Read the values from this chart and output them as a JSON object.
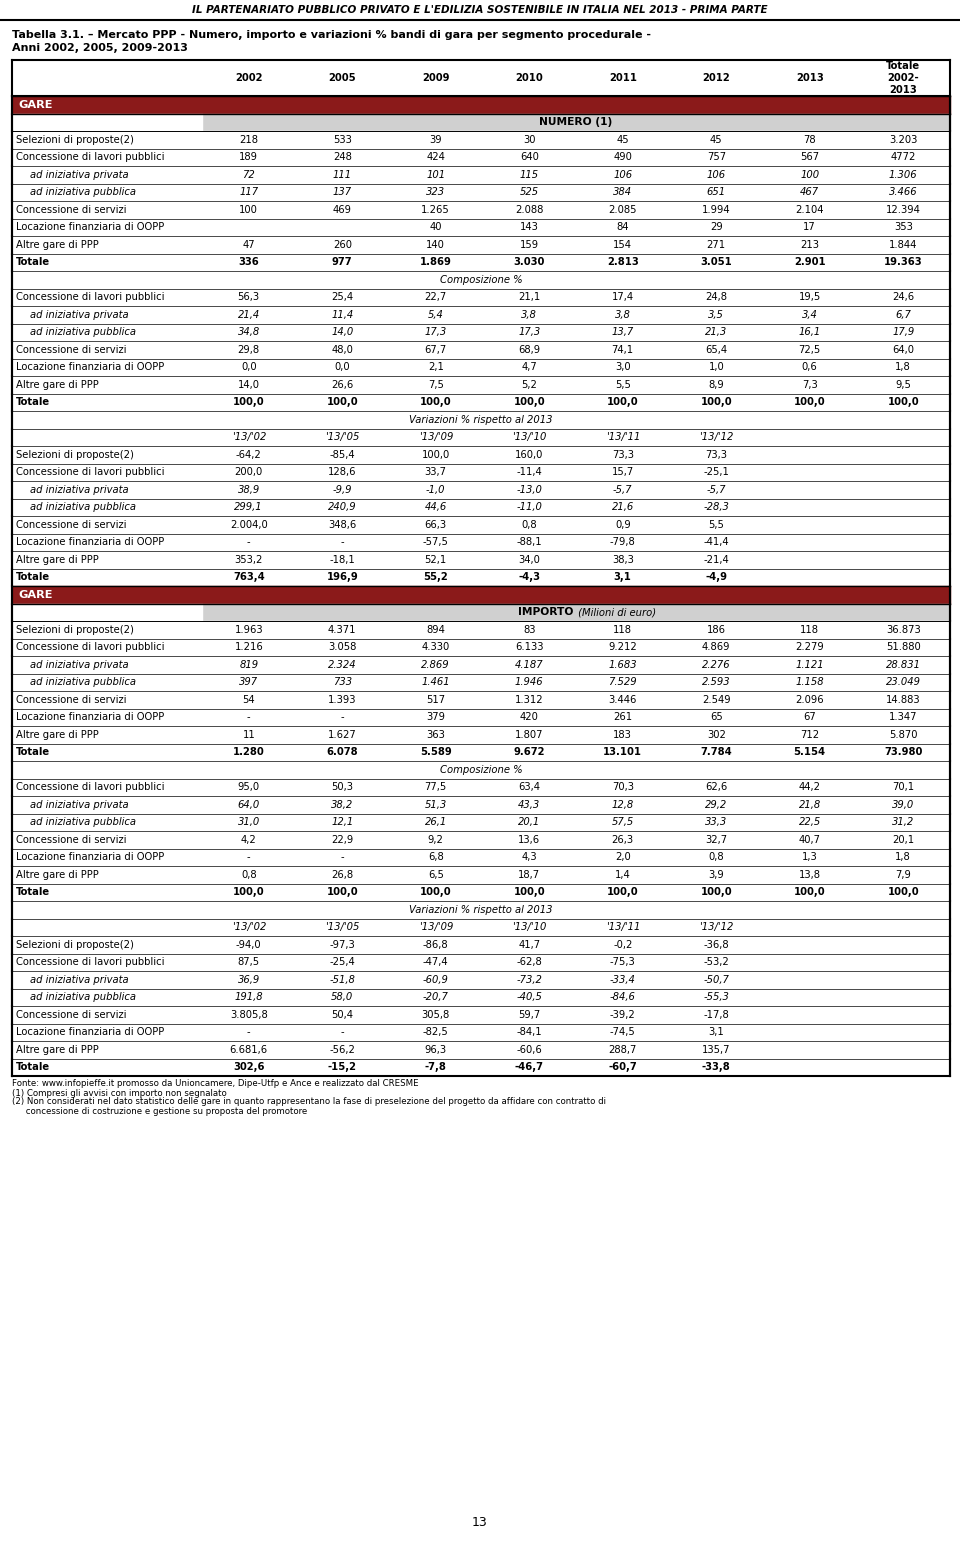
{
  "header_title": "IL PARTENARIATO PUBBLICO PRIVATO E L'EDILIZIA SOSTENIBILE IN ITALIA NEL 2013 - PRIMA PARTE",
  "table_title_line1": "Tabella 3.1. – Mercato PPP - Numero, importo e variazioni % bandi di gara per segmento procedurale -",
  "table_title_line2": "Anni 2002, 2005, 2009-2013",
  "section_gare": "GARE",
  "subsection_numero": "NUMERO (1)",
  "subsection_composizione": "Composizione %",
  "subsection_variazioni": "Variazioni % rispetto al 2013",
  "subsection_importo_bold": "IMPORTO",
  "subsection_importo_italic": " (Milioni di euro)",
  "subsection_composizione2": "Composizione %",
  "subsection_variazioni2": "Variazioni % rispetto al 2013",
  "footer_lines": [
    "Fonte: www.infopieffe.it promosso da Unioncamere, Dipe-Utfp e Ance e realizzato dal CRESME",
    "(1) Compresi gli avvisi con importo non segnalato",
    "(2) Non considerati nel dato statistico delle gare in quanto rappresentano la fase di preselezione del progetto da affidare con contratto di",
    "     concessione di costruzione e gestione su proposta del promotore"
  ],
  "page_number": "13",
  "col_headers_years": [
    "2002",
    "2005",
    "2009",
    "2010",
    "2011",
    "2012",
    "2013"
  ],
  "col_header_totale": "Totale\n2002-\n2013",
  "dark_red": "#8B1A1A",
  "light_gray": "#D0D0D0",
  "rows_numero": [
    [
      "Selezioni di proposte(2)",
      "218",
      "533",
      "39",
      "30",
      "45",
      "45",
      "78",
      "3.203",
      false,
      false
    ],
    [
      "Concessione di lavori pubblici",
      "189",
      "248",
      "424",
      "640",
      "490",
      "757",
      "567",
      "4772",
      false,
      false
    ],
    [
      "ad iniziativa privata",
      "72",
      "111",
      "101",
      "115",
      "106",
      "106",
      "100",
      "1.306",
      false,
      true
    ],
    [
      "ad iniziativa pubblica",
      "117",
      "137",
      "323",
      "525",
      "384",
      "651",
      "467",
      "3.466",
      false,
      true
    ],
    [
      "Concessione di servizi",
      "100",
      "469",
      "1.265",
      "2.088",
      "2.085",
      "1.994",
      "2.104",
      "12.394",
      false,
      false
    ],
    [
      "Locazione finanziaria di OOPP",
      "",
      "",
      "40",
      "143",
      "84",
      "29",
      "17",
      "353",
      false,
      false
    ],
    [
      "Altre gare di PPP",
      "47",
      "260",
      "140",
      "159",
      "154",
      "271",
      "213",
      "1.844",
      false,
      false
    ],
    [
      "Totale",
      "336",
      "977",
      "1.869",
      "3.030",
      "2.813",
      "3.051",
      "2.901",
      "19.363",
      true,
      false
    ]
  ],
  "rows_composizione1": [
    [
      "Concessione di lavori pubblici",
      "56,3",
      "25,4",
      "22,7",
      "21,1",
      "17,4",
      "24,8",
      "19,5",
      "24,6",
      false,
      false
    ],
    [
      "ad iniziativa privata",
      "21,4",
      "11,4",
      "5,4",
      "3,8",
      "3,8",
      "3,5",
      "3,4",
      "6,7",
      false,
      true
    ],
    [
      "ad iniziativa pubblica",
      "34,8",
      "14,0",
      "17,3",
      "17,3",
      "13,7",
      "21,3",
      "16,1",
      "17,9",
      false,
      true
    ],
    [
      "Concessione di servizi",
      "29,8",
      "48,0",
      "67,7",
      "68,9",
      "74,1",
      "65,4",
      "72,5",
      "64,0",
      false,
      false
    ],
    [
      "Locazione finanziaria di OOPP",
      "0,0",
      "0,0",
      "2,1",
      "4,7",
      "3,0",
      "1,0",
      "0,6",
      "1,8",
      false,
      false
    ],
    [
      "Altre gare di PPP",
      "14,0",
      "26,6",
      "7,5",
      "5,2",
      "5,5",
      "8,9",
      "7,3",
      "9,5",
      false,
      false
    ],
    [
      "Totale",
      "100,0",
      "100,0",
      "100,0",
      "100,0",
      "100,0",
      "100,0",
      "100,0",
      "100,0",
      true,
      false
    ]
  ],
  "var1_col_headers": [
    "'13/'02",
    "'13/'05",
    "'13/'09",
    "'13/'10",
    "'13/'11",
    "'13/'12"
  ],
  "rows_variazioni1": [
    [
      "Selezioni di proposte(2)",
      "-64,2",
      "-85,4",
      "100,0",
      "160,0",
      "73,3",
      "73,3",
      false,
      false
    ],
    [
      "Concessione di lavori pubblici",
      "200,0",
      "128,6",
      "33,7",
      "-11,4",
      "15,7",
      "-25,1",
      false,
      false
    ],
    [
      "ad iniziativa privata",
      "38,9",
      "-9,9",
      "-1,0",
      "-13,0",
      "-5,7",
      "-5,7",
      false,
      true
    ],
    [
      "ad iniziativa pubblica",
      "299,1",
      "240,9",
      "44,6",
      "-11,0",
      "21,6",
      "-28,3",
      false,
      true
    ],
    [
      "Concessione di servizi",
      "2.004,0",
      "348,6",
      "66,3",
      "0,8",
      "0,9",
      "5,5",
      false,
      false
    ],
    [
      "Locazione finanziaria di OOPP",
      "-",
      "-",
      "-57,5",
      "-88,1",
      "-79,8",
      "-41,4",
      false,
      false
    ],
    [
      "Altre gare di PPP",
      "353,2",
      "-18,1",
      "52,1",
      "34,0",
      "38,3",
      "-21,4",
      false,
      false
    ],
    [
      "Totale",
      "763,4",
      "196,9",
      "55,2",
      "-4,3",
      "3,1",
      "-4,9",
      true,
      false
    ]
  ],
  "rows_importo": [
    [
      "Selezioni di proposte(2)",
      "1.963",
      "4.371",
      "894",
      "83",
      "118",
      "186",
      "118",
      "36.873",
      false,
      false
    ],
    [
      "Concessione di lavori pubblici",
      "1.216",
      "3.058",
      "4.330",
      "6.133",
      "9.212",
      "4.869",
      "2.279",
      "51.880",
      false,
      false
    ],
    [
      "ad iniziativa privata",
      "819",
      "2.324",
      "2.869",
      "4.187",
      "1.683",
      "2.276",
      "1.121",
      "28.831",
      false,
      true
    ],
    [
      "ad iniziativa pubblica",
      "397",
      "733",
      "1.461",
      "1.946",
      "7.529",
      "2.593",
      "1.158",
      "23.049",
      false,
      true
    ],
    [
      "Concessione di servizi",
      "54",
      "1.393",
      "517",
      "1.312",
      "3.446",
      "2.549",
      "2.096",
      "14.883",
      false,
      false
    ],
    [
      "Locazione finanziaria di OOPP",
      "-",
      "-",
      "379",
      "420",
      "261",
      "65",
      "67",
      "1.347",
      false,
      false
    ],
    [
      "Altre gare di PPP",
      "11",
      "1.627",
      "363",
      "1.807",
      "183",
      "302",
      "712",
      "5.870",
      false,
      false
    ],
    [
      "Totale",
      "1.280",
      "6.078",
      "5.589",
      "9.672",
      "13.101",
      "7.784",
      "5.154",
      "73.980",
      true,
      false
    ]
  ],
  "rows_composizione2": [
    [
      "Concessione di lavori pubblici",
      "95,0",
      "50,3",
      "77,5",
      "63,4",
      "70,3",
      "62,6",
      "44,2",
      "70,1",
      false,
      false
    ],
    [
      "ad iniziativa privata",
      "64,0",
      "38,2",
      "51,3",
      "43,3",
      "12,8",
      "29,2",
      "21,8",
      "39,0",
      false,
      true
    ],
    [
      "ad iniziativa pubblica",
      "31,0",
      "12,1",
      "26,1",
      "20,1",
      "57,5",
      "33,3",
      "22,5",
      "31,2",
      false,
      true
    ],
    [
      "Concessione di servizi",
      "4,2",
      "22,9",
      "9,2",
      "13,6",
      "26,3",
      "32,7",
      "40,7",
      "20,1",
      false,
      false
    ],
    [
      "Locazione finanziaria di OOPP",
      "-",
      "-",
      "6,8",
      "4,3",
      "2,0",
      "0,8",
      "1,3",
      "1,8",
      false,
      false
    ],
    [
      "Altre gare di PPP",
      "0,8",
      "26,8",
      "6,5",
      "18,7",
      "1,4",
      "3,9",
      "13,8",
      "7,9",
      false,
      false
    ],
    [
      "Totale",
      "100,0",
      "100,0",
      "100,0",
      "100,0",
      "100,0",
      "100,0",
      "100,0",
      "100,0",
      true,
      false
    ]
  ],
  "rows_variazioni2": [
    [
      "Selezioni di proposte(2)",
      "-94,0",
      "-97,3",
      "-86,8",
      "41,7",
      "-0,2",
      "-36,8",
      false,
      false
    ],
    [
      "Concessione di lavori pubblici",
      "87,5",
      "-25,4",
      "-47,4",
      "-62,8",
      "-75,3",
      "-53,2",
      false,
      false
    ],
    [
      "ad iniziativa privata",
      "36,9",
      "-51,8",
      "-60,9",
      "-73,2",
      "-33,4",
      "-50,7",
      false,
      true
    ],
    [
      "ad iniziativa pubblica",
      "191,8",
      "58,0",
      "-20,7",
      "-40,5",
      "-84,6",
      "-55,3",
      false,
      true
    ],
    [
      "Concessione di servizi",
      "3.805,8",
      "50,4",
      "305,8",
      "59,7",
      "-39,2",
      "-17,8",
      false,
      false
    ],
    [
      "Locazione finanziaria di OOPP",
      "-",
      "-",
      "-82,5",
      "-84,1",
      "-74,5",
      "3,1",
      false,
      false
    ],
    [
      "Altre gare di PPP",
      "6.681,6",
      "-56,2",
      "96,3",
      "-60,6",
      "288,7",
      "135,7",
      false,
      false
    ],
    [
      "Totale",
      "302,6",
      "-15,2",
      "-7,8",
      "-46,7",
      "-60,7",
      "-33,8",
      true,
      false
    ]
  ]
}
